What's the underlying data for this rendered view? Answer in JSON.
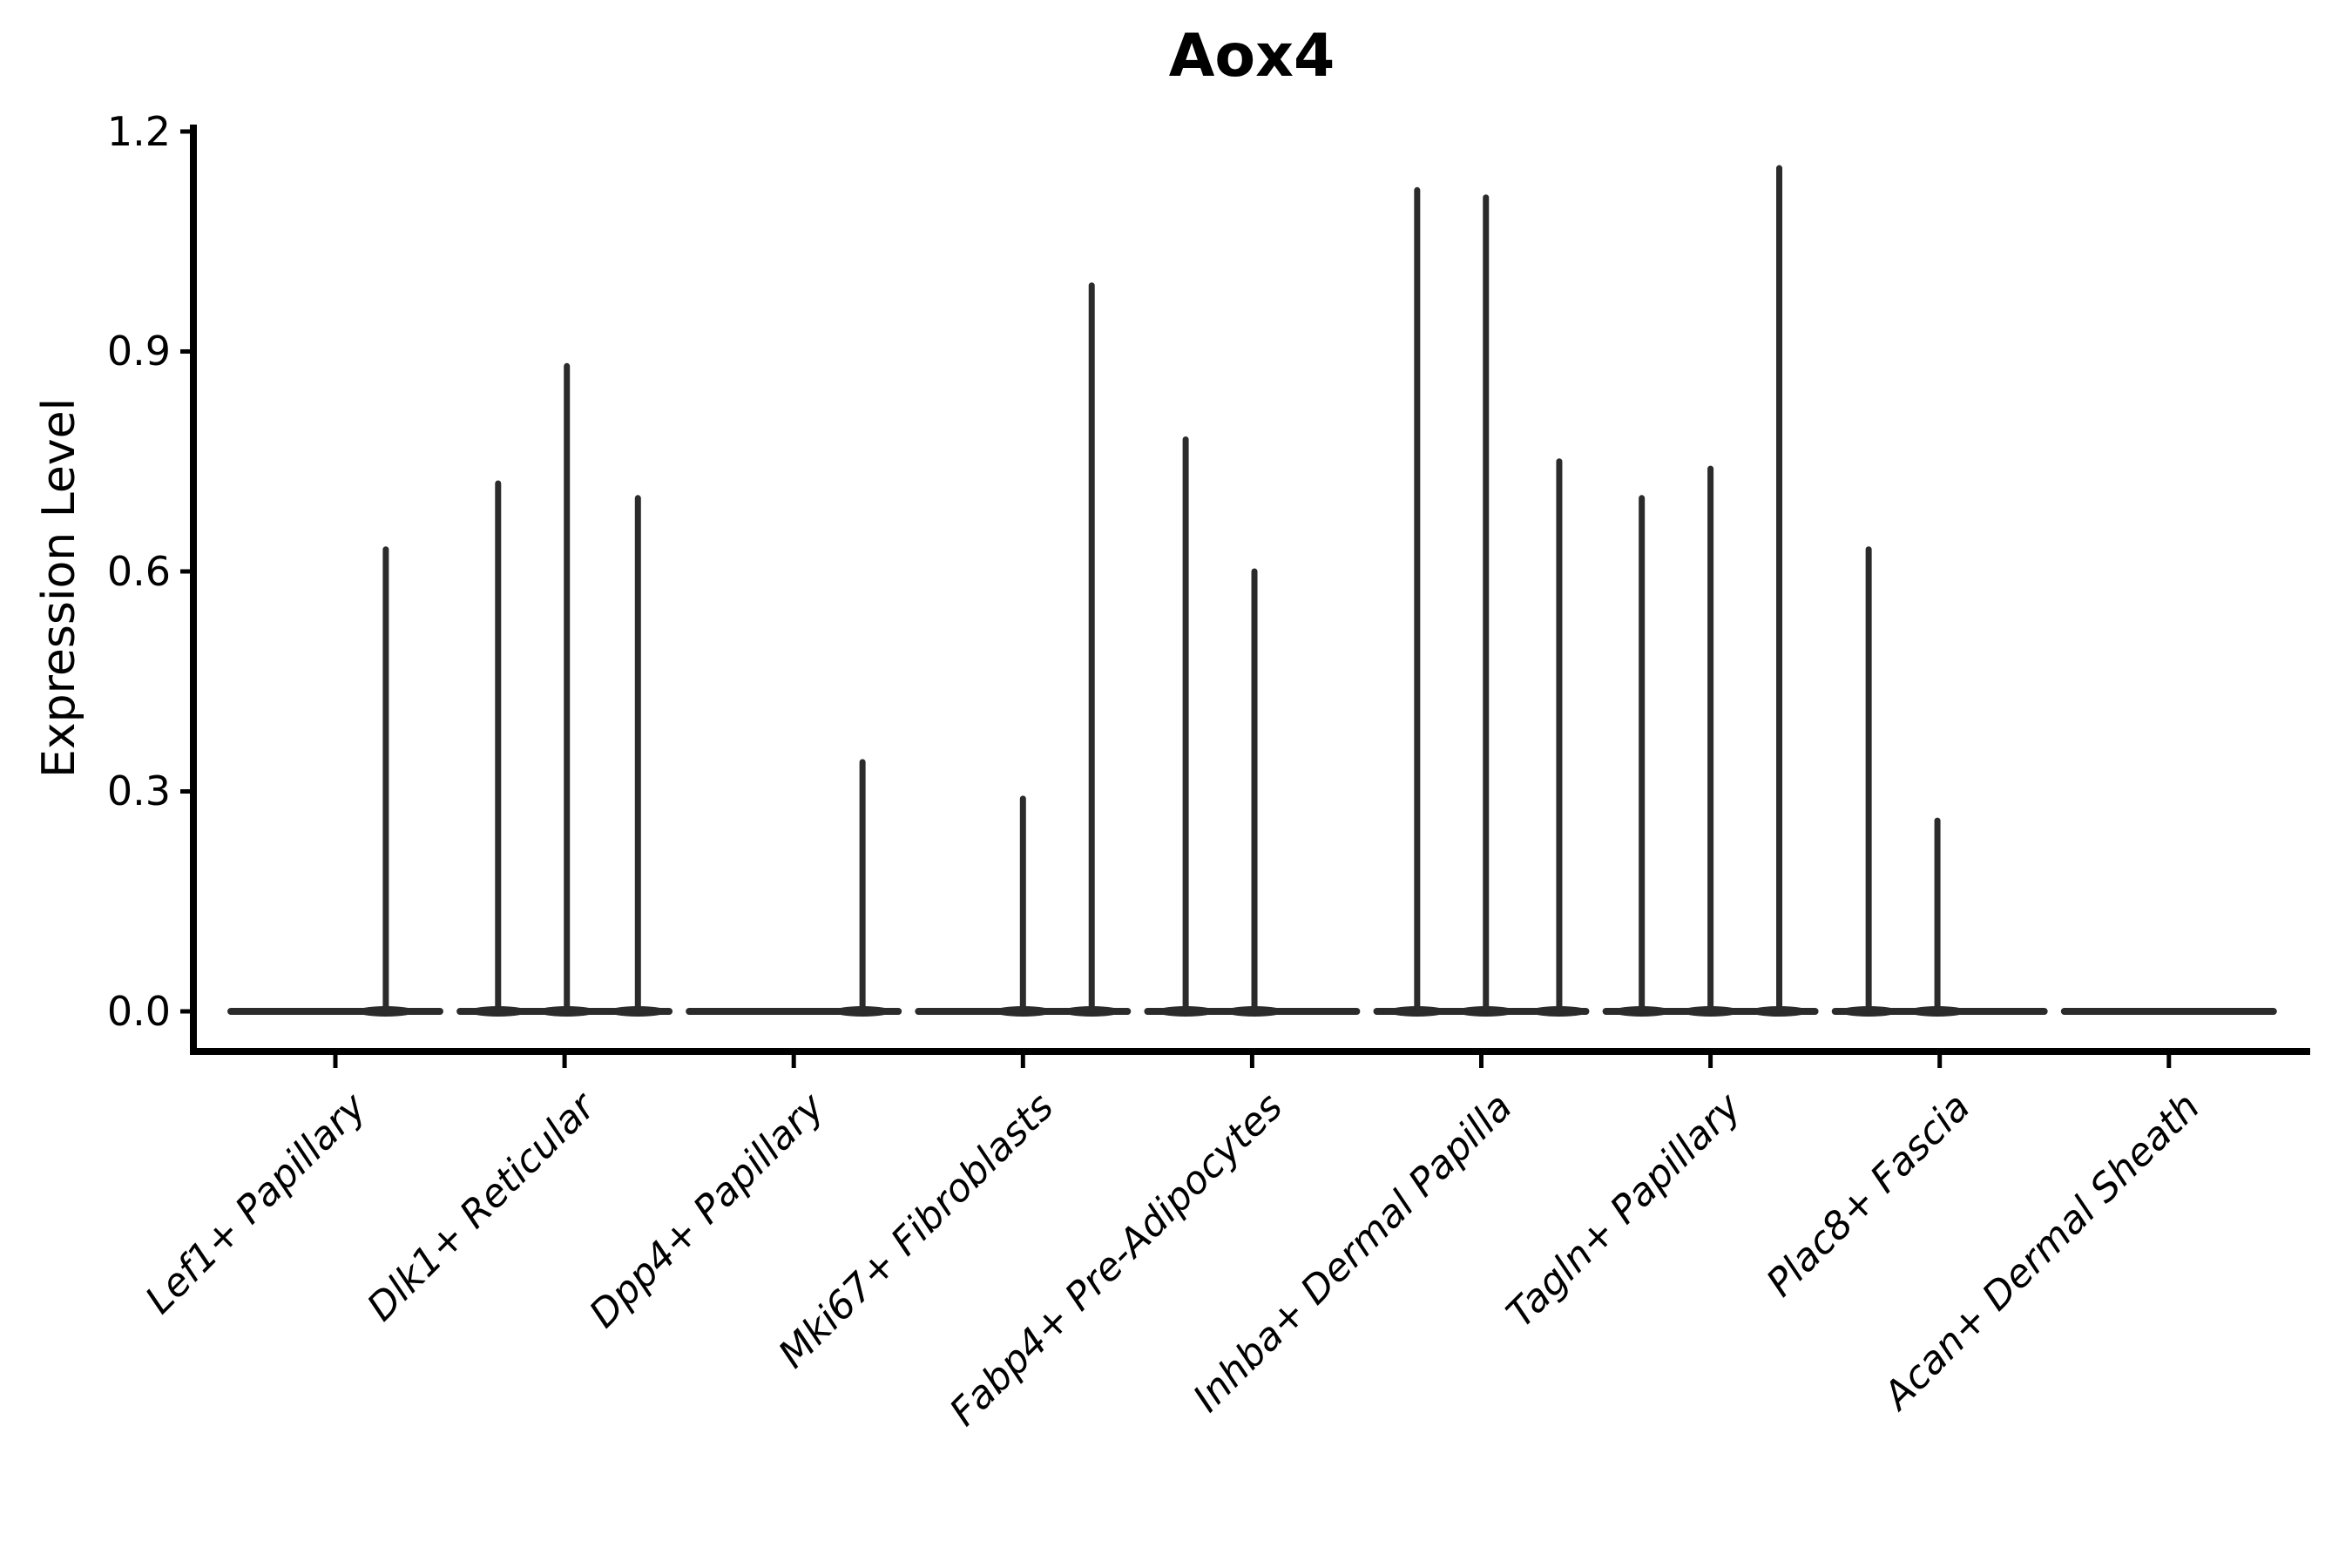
{
  "title": "Aox4",
  "chart_data": {
    "type": "violin",
    "title": "Aox4",
    "ylabel": "Expression Level",
    "xlabel": "",
    "grid": false,
    "legend": false,
    "yticks": [
      "0.0",
      "0.3",
      "0.6",
      "0.9",
      "1.2"
    ],
    "ylim": [
      -0.05,
      1.21
    ],
    "categories": [
      "Lef1+ Papillary",
      "Dlk1+ Reticular",
      "Dpp4+ Papillary",
      "Mki67+ Fibroblasts",
      "Fabp4+ Pre-Adipocytes",
      "Inhba+ Dermal Papilla",
      "Tagln+ Papillary",
      "Plac8+ Fascia",
      "Acan+ Dermal Sheath"
    ],
    "violin_half_width": 0.456,
    "series": [
      {
        "category": "Lef1+ Papillary",
        "baseline_value": 0.0,
        "spikes": [
          {
            "offset": 0.22,
            "value": 0.63
          }
        ]
      },
      {
        "category": "Dlk1+ Reticular",
        "baseline_value": 0.0,
        "spikes": [
          {
            "offset": -0.29,
            "value": 0.72
          },
          {
            "offset": 0.01,
            "value": 0.88
          },
          {
            "offset": 0.32,
            "value": 0.7
          }
        ]
      },
      {
        "category": "Dpp4+ Papillary",
        "baseline_value": 0.0,
        "spikes": [
          {
            "offset": 0.3,
            "value": 0.34
          }
        ]
      },
      {
        "category": "Mki67+ Fibroblasts",
        "baseline_value": 0.0,
        "spikes": [
          {
            "offset": 0.0,
            "value": 0.29
          },
          {
            "offset": 0.3,
            "value": 0.99
          }
        ]
      },
      {
        "category": "Fabp4+ Pre-Adipocytes",
        "baseline_value": 0.0,
        "spikes": [
          {
            "offset": -0.29,
            "value": 0.78
          },
          {
            "offset": 0.01,
            "value": 0.6
          }
        ]
      },
      {
        "category": "Inhba+ Dermal Papilla",
        "baseline_value": 0.0,
        "spikes": [
          {
            "offset": -0.28,
            "value": 1.12
          },
          {
            "offset": 0.02,
            "value": 1.11
          },
          {
            "offset": 0.34,
            "value": 0.75
          }
        ]
      },
      {
        "category": "Tagln+ Papillary",
        "baseline_value": 0.0,
        "spikes": [
          {
            "offset": -0.3,
            "value": 0.7
          },
          {
            "offset": 0.0,
            "value": 0.74
          },
          {
            "offset": 0.3,
            "value": 1.15
          }
        ]
      },
      {
        "category": "Plac8+ Fascia",
        "baseline_value": 0.0,
        "spikes": [
          {
            "offset": -0.31,
            "value": 0.63
          },
          {
            "offset": -0.01,
            "value": 0.26
          }
        ]
      },
      {
        "category": "Acan+ Dermal Sheath",
        "baseline_value": 0.0,
        "spikes": []
      }
    ],
    "colors": {
      "violin_stroke": "#2b2b2b",
      "axis": "#000000",
      "text": "#000000",
      "background": "#ffffff"
    }
  }
}
